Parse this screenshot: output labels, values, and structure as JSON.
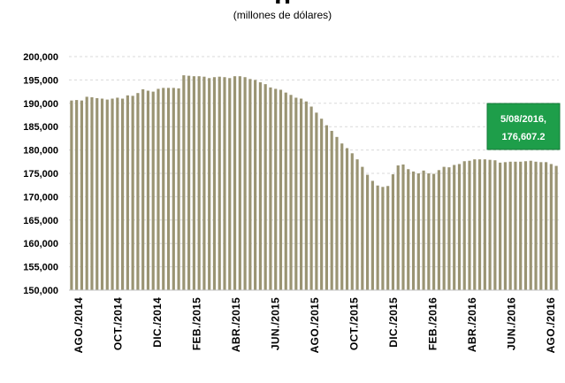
{
  "header": {
    "title_fragment": "g",
    "subtitle": "(millones de dólares)"
  },
  "chart_data": {
    "type": "bar",
    "subtitle": "(millones de dólares)",
    "ylim": [
      150000,
      200000
    ],
    "yticks": [
      "150,000",
      "155,000",
      "160,000",
      "165,000",
      "170,000",
      "175,000",
      "180,000",
      "185,000",
      "190,000",
      "195,000",
      "200,000"
    ],
    "xtick_labels": [
      "AGO./2014",
      "OCT./2014",
      "DIC./2014",
      "FEB./2015",
      "ABR./2015",
      "JUN./2015",
      "AGO./2015",
      "OCT./2015",
      "DIC./2015",
      "FEB./2016",
      "ABR./2016",
      "JUN./2016",
      "AGO./2016"
    ],
    "grid": true,
    "bar_color": "#9a9473",
    "grid_color": "#d9d9d9",
    "values": [
      190600,
      190700,
      190600,
      191400,
      191300,
      191100,
      191000,
      190800,
      191000,
      191200,
      191000,
      191700,
      191600,
      192200,
      193000,
      192700,
      192500,
      193100,
      193300,
      193300,
      193300,
      193200,
      196000,
      195900,
      195800,
      195800,
      195700,
      195400,
      195600,
      195700,
      195600,
      195400,
      195800,
      195800,
      195600,
      195200,
      195000,
      194500,
      194100,
      193400,
      193100,
      192900,
      192300,
      191800,
      191200,
      191000,
      190400,
      189300,
      188000,
      186700,
      185300,
      184100,
      182800,
      181400,
      180400,
      179300,
      178000,
      176400,
      174700,
      173400,
      172400,
      172100,
      172300,
      174800,
      176700,
      176900,
      175900,
      175400,
      175000,
      175600,
      175000,
      174900,
      175700,
      176400,
      176300,
      176800,
      177000,
      177600,
      177700,
      178000,
      178000,
      178000,
      177900,
      177800,
      177300,
      177400,
      177500,
      177500,
      177500,
      177600,
      177700,
      177500,
      177400,
      177400,
      177000,
      176600
    ],
    "annotation": {
      "line1": "5/08/2016,",
      "line2": "176,607.2",
      "color": "#1e9e4a"
    }
  }
}
